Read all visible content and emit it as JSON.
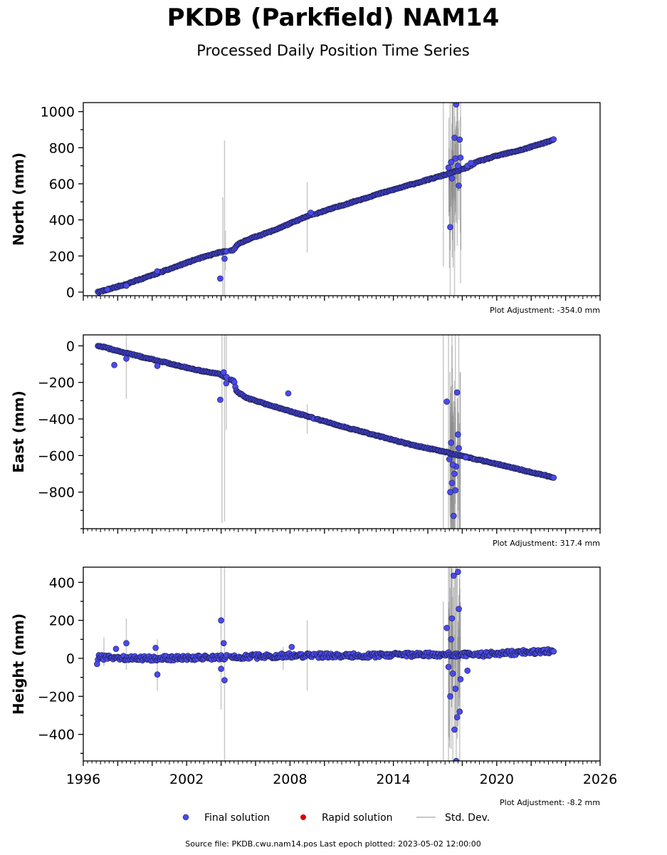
{
  "title": "PKDB (Parkfield) NAM14",
  "subtitle": "Processed Daily Position Time Series",
  "colors": {
    "final": "#4a4aee",
    "final_edge": "#1a1a40",
    "rapid": "#dd0000",
    "stddev": "#c8c8c8",
    "stddev_dense": "#8a8a8a"
  },
  "legend": {
    "final": "Final solution",
    "rapid": "Rapid solution",
    "stddev": "Std. Dev."
  },
  "footer": "Source file: PKDB.cwu.nam14.pos  Last epoch plotted: 2023-05-02 12:00:00",
  "chart_data": [
    {
      "type": "scatter",
      "component": "north",
      "ylabel": "North (mm)",
      "adjustment": "Plot Adjustment: -354.0 mm",
      "xlim": [
        1996,
        2026
      ],
      "ylim": [
        -20,
        1050
      ],
      "yticks": [
        0,
        200,
        400,
        600,
        800,
        1000
      ],
      "series": [
        {
          "type": "line",
          "points": [
            [
              1996.9,
              0
            ],
            [
              1998.5,
              45
            ],
            [
              2000.5,
              110
            ],
            [
              2002.5,
              180
            ],
            [
              2003.9,
              220
            ],
            [
              2004.3,
              225
            ],
            [
              2004.7,
              232
            ],
            [
              2004.9,
              260
            ],
            [
              2005.5,
              290
            ],
            [
              2007,
              340
            ],
            [
              2009,
              420
            ],
            [
              2011,
              480
            ],
            [
              2013,
              540
            ],
            [
              2015,
              595
            ],
            [
              2017,
              650
            ],
            [
              2018.3,
              690
            ],
            [
              2018.8,
              720
            ],
            [
              2020,
              755
            ],
            [
              2021.5,
              790
            ],
            [
              2023.35,
              845
            ]
          ]
        },
        {
          "type": "outliers",
          "points": [
            [
              2003.95,
              75
            ],
            [
              2004.2,
              185
            ],
            [
              2000.3,
              115
            ],
            [
              1998.5,
              35
            ],
            [
              1997.4,
              15
            ],
            [
              2009.2,
              440
            ],
            [
              2017.3,
              360
            ],
            [
              2017.55,
              855
            ],
            [
              2017.65,
              1040
            ],
            [
              2017.8,
              590
            ],
            [
              2017.85,
              845
            ],
            [
              2017.4,
              630
            ],
            [
              2017.6,
              740
            ],
            [
              2017.75,
              700
            ],
            [
              2017.9,
              745
            ],
            [
              2017.2,
              690
            ],
            [
              2017.35,
              720
            ],
            [
              2018.3,
              700
            ],
            [
              2018.5,
              715
            ]
          ]
        },
        {
          "type": "stddev",
          "points": [
            [
              2004.1,
              -20,
              525
            ],
            [
              2004.2,
              -20,
              840
            ],
            [
              2004.25,
              120,
              340
            ],
            [
              2009.0,
              220,
              610
            ],
            [
              2016.9,
              140,
              1050
            ],
            [
              2017.3,
              -20,
              1050
            ],
            [
              2017.55,
              -20,
              1050
            ],
            [
              2017.7,
              380,
              1050
            ],
            [
              2017.9,
              50,
              1050
            ],
            [
              2017.8,
              400,
              950
            ]
          ]
        }
      ]
    },
    {
      "type": "scatter",
      "component": "east",
      "ylabel": "East (mm)",
      "adjustment": "Plot Adjustment: 317.4 mm",
      "xlim": [
        1996,
        2026
      ],
      "ylim": [
        -1000,
        60
      ],
      "yticks": [
        0,
        -200,
        -400,
        -600,
        -800
      ],
      "series": [
        {
          "type": "line",
          "points": [
            [
              1996.9,
              0
            ],
            [
              1998.5,
              -40
            ],
            [
              2000.5,
              -85
            ],
            [
              2002.5,
              -130
            ],
            [
              2003.9,
              -155
            ],
            [
              2004.5,
              -180
            ],
            [
              2004.75,
              -195
            ],
            [
              2004.9,
              -250
            ],
            [
              2005.5,
              -285
            ],
            [
              2007,
              -330
            ],
            [
              2009,
              -385
            ],
            [
              2011,
              -440
            ],
            [
              2013,
              -490
            ],
            [
              2015,
              -540
            ],
            [
              2017,
              -580
            ],
            [
              2018.3,
              -610
            ],
            [
              2018.8,
              -620
            ],
            [
              2020,
              -645
            ],
            [
              2021.5,
              -680
            ],
            [
              2023.35,
              -720
            ]
          ]
        },
        {
          "type": "outliers",
          "points": [
            [
              1997.8,
              -105
            ],
            [
              1998.5,
              -70
            ],
            [
              2000.3,
              -110
            ],
            [
              2003.95,
              -295
            ],
            [
              2004.15,
              -145
            ],
            [
              2004.3,
              -205
            ],
            [
              2007.9,
              -260
            ],
            [
              2017.1,
              -305
            ],
            [
              2017.3,
              -800
            ],
            [
              2017.4,
              -750
            ],
            [
              2017.5,
              -930
            ],
            [
              2017.6,
              -790
            ],
            [
              2017.7,
              -255
            ],
            [
              2017.55,
              -700
            ],
            [
              2017.65,
              -660
            ],
            [
              2017.45,
              -650
            ],
            [
              2017.75,
              -485
            ],
            [
              2017.35,
              -530
            ],
            [
              2017.8,
              -560
            ],
            [
              2017.25,
              -620
            ],
            [
              2018.2,
              -610
            ]
          ]
        },
        {
          "type": "stddev",
          "points": [
            [
              1998.5,
              -290,
              60
            ],
            [
              2004.05,
              -970,
              60
            ],
            [
              2004.2,
              -960,
              60
            ],
            [
              2004.3,
              -460,
              60
            ],
            [
              2009.0,
              -480,
              -320
            ],
            [
              2016.9,
              -1000,
              60
            ],
            [
              2017.2,
              -1000,
              60
            ],
            [
              2017.4,
              -1000,
              60
            ],
            [
              2017.6,
              -1000,
              60
            ],
            [
              2017.8,
              -1000,
              60
            ]
          ]
        }
      ]
    },
    {
      "type": "scatter",
      "component": "height",
      "ylabel": "Height (mm)",
      "adjustment": "Plot Adjustment: -8.2 mm",
      "xlim": [
        1996,
        2026
      ],
      "ylim": [
        -540,
        480
      ],
      "yticks": [
        400,
        200,
        0,
        -200,
        -400
      ],
      "xticks": [
        1996,
        2002,
        2008,
        2014,
        2020,
        2026
      ],
      "series": [
        {
          "type": "line",
          "points": [
            [
              1996.9,
              5
            ],
            [
              2000,
              0
            ],
            [
              2004,
              5
            ],
            [
              2008,
              15
            ],
            [
              2012,
              15
            ],
            [
              2016,
              20
            ],
            [
              2018,
              20
            ],
            [
              2019,
              20
            ],
            [
              2023.35,
              40
            ]
          ]
        },
        {
          "type": "outliers",
          "points": [
            [
              1996.8,
              -30
            ],
            [
              1997.9,
              50
            ],
            [
              1998.5,
              80
            ],
            [
              2000.2,
              55
            ],
            [
              2000.3,
              -85
            ],
            [
              2004.0,
              200
            ],
            [
              2004.15,
              80
            ],
            [
              2004.2,
              -115
            ],
            [
              2004.0,
              -55
            ],
            [
              2008.1,
              60
            ],
            [
              2017.1,
              160
            ],
            [
              2017.3,
              -200
            ],
            [
              2017.5,
              435
            ],
            [
              2017.55,
              -375
            ],
            [
              2017.6,
              -160
            ],
            [
              2017.65,
              -540
            ],
            [
              2017.75,
              455
            ],
            [
              2017.8,
              260
            ],
            [
              2017.85,
              -280
            ],
            [
              2017.7,
              -310
            ],
            [
              2017.45,
              -80
            ],
            [
              2017.4,
              210
            ],
            [
              2018.3,
              -65
            ],
            [
              2017.2,
              -45
            ],
            [
              2017.35,
              100
            ],
            [
              2017.9,
              -110
            ]
          ]
        },
        {
          "type": "stddev",
          "points": [
            [
              1997.2,
              -40,
              110
            ],
            [
              1998.5,
              -60,
              210
            ],
            [
              2000.3,
              -170,
              100
            ],
            [
              2004.0,
              -270,
              480
            ],
            [
              2004.2,
              -540,
              480
            ],
            [
              2009.0,
              -170,
              200
            ],
            [
              2016.9,
              -540,
              300
            ],
            [
              2017.2,
              -540,
              480
            ],
            [
              2017.45,
              -540,
              480
            ],
            [
              2017.65,
              -540,
              480
            ],
            [
              2017.85,
              -540,
              480
            ],
            [
              2007.6,
              -60,
              60
            ]
          ]
        }
      ]
    }
  ]
}
